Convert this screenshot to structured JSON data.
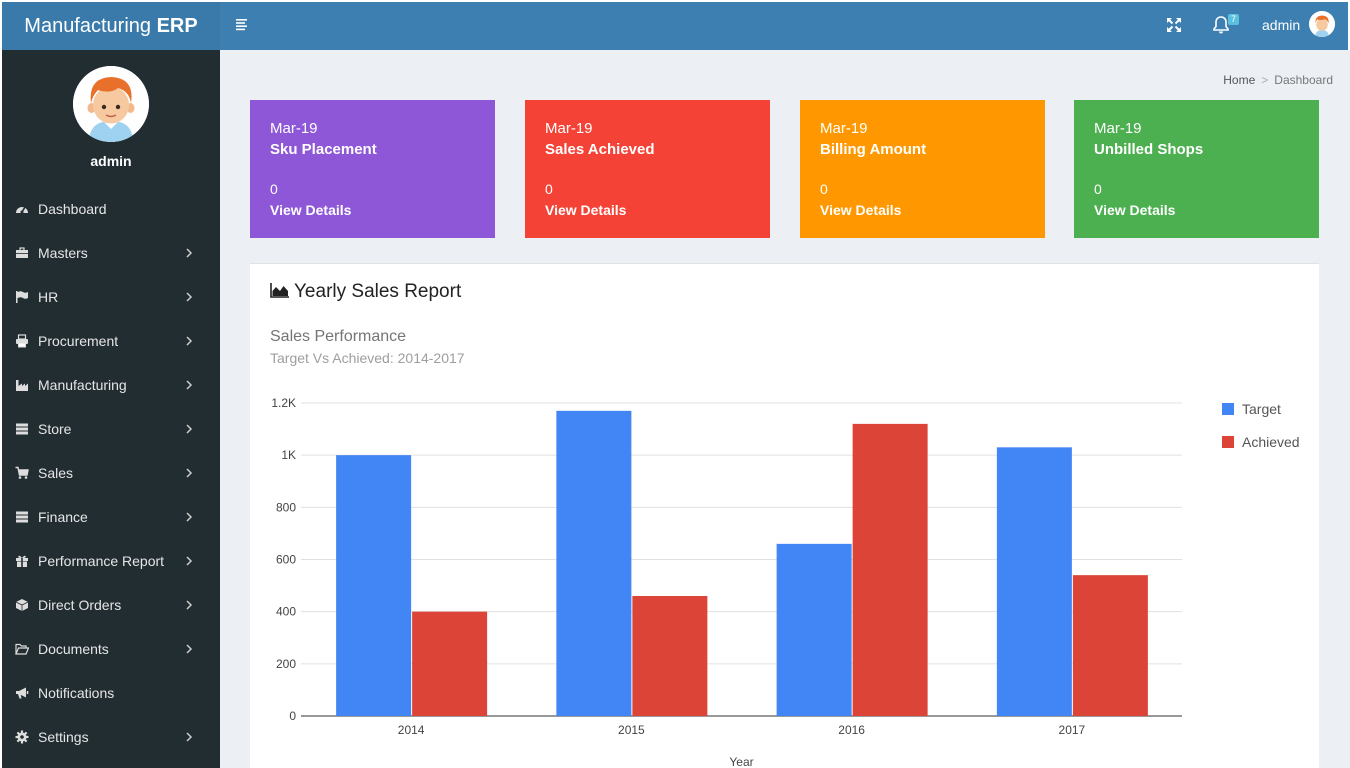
{
  "app": {
    "brand_light": "Manufacturing ",
    "brand_bold": "ERP"
  },
  "topbar": {
    "notification_count": "7",
    "username": "admin"
  },
  "sidebar": {
    "profile_name": "admin",
    "items": [
      {
        "label": "Dashboard",
        "icon": "dashboard-icon",
        "has_submenu": false
      },
      {
        "label": "Masters",
        "icon": "briefcase-icon",
        "has_submenu": true
      },
      {
        "label": "HR",
        "icon": "flag-icon",
        "has_submenu": true
      },
      {
        "label": "Procurement",
        "icon": "print-icon",
        "has_submenu": true
      },
      {
        "label": "Manufacturing",
        "icon": "industry-icon",
        "has_submenu": true
      },
      {
        "label": "Store",
        "icon": "server-icon",
        "has_submenu": true
      },
      {
        "label": "Sales",
        "icon": "cart-icon",
        "has_submenu": true
      },
      {
        "label": "Finance",
        "icon": "server-icon",
        "has_submenu": true
      },
      {
        "label": "Performance Report",
        "icon": "gift-icon",
        "has_submenu": true
      },
      {
        "label": "Direct Orders",
        "icon": "cube-icon",
        "has_submenu": true
      },
      {
        "label": "Documents",
        "icon": "folder-open-icon",
        "has_submenu": true
      },
      {
        "label": "Notifications",
        "icon": "bullhorn-icon",
        "has_submenu": false
      },
      {
        "label": "Settings",
        "icon": "gear-icon",
        "has_submenu": true
      }
    ]
  },
  "breadcrumb": {
    "home": "Home",
    "separator": ">",
    "current": "Dashboard"
  },
  "cards": [
    {
      "month": "Mar-19",
      "title": "Sku Placement",
      "value": "0",
      "link": "View Details",
      "color": "#8e57d8"
    },
    {
      "month": "Mar-19",
      "title": "Sales Achieved",
      "value": "0",
      "link": "View Details",
      "color": "#f44336"
    },
    {
      "month": "Mar-19",
      "title": "Billing Amount",
      "value": "0",
      "link": "View Details",
      "color": "#ff9800"
    },
    {
      "month": "Mar-19",
      "title": "Unbilled Shops",
      "value": "0",
      "link": "View Details",
      "color": "#4caf50"
    }
  ],
  "report": {
    "panel_title": "Yearly Sales Report",
    "chart_title": "Sales Performance",
    "chart_subtitle": "Target Vs Achieved: 2014-2017"
  },
  "chart_data": {
    "type": "bar",
    "categories": [
      "2014",
      "2015",
      "2016",
      "2017"
    ],
    "series": [
      {
        "name": "Target",
        "values": [
          1000,
          1170,
          660,
          1030
        ],
        "color": "#4285f4"
      },
      {
        "name": "Achieved",
        "values": [
          400,
          460,
          1120,
          540
        ],
        "color": "#db4437"
      }
    ],
    "xlabel": "Year",
    "ylabel": "",
    "ylim": [
      0,
      1200
    ],
    "yticks": [
      0,
      200,
      400,
      600,
      800,
      1000,
      1200
    ],
    "ytick_labels": [
      "0",
      "200",
      "400",
      "600",
      "800",
      "1K",
      "1.2K"
    ],
    "grid": true,
    "legend_position": "right"
  }
}
